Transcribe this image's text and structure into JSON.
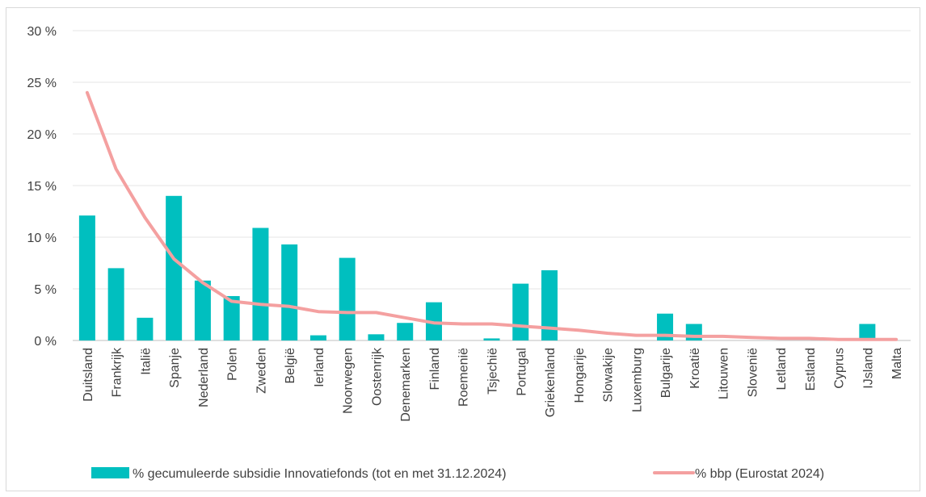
{
  "chart_data": {
    "type": "bar",
    "categories": [
      "Duitsland",
      "Frankrijk",
      "Italië",
      "Spanje",
      "Nederland",
      "Polen",
      "Zweden",
      "België",
      "Ierland",
      "Noorwegen",
      "Oostenrijk",
      "Denemarken",
      "Finland",
      "Roemenië",
      "Tsjechië",
      "Portugal",
      "Griekenland",
      "Hongarije",
      "Slowakije",
      "Luxemburg",
      "Bulgarije",
      "Kroatië",
      "Litouwen",
      "Slovenië",
      "Letland",
      "Estland",
      "Cyprus",
      "IJsland",
      "Malta"
    ],
    "series": [
      {
        "name": "% gecumuleerde subsidie Innovatiefonds (tot en met 31.12.2024)",
        "type": "bar",
        "color": "#00BFBF",
        "values": [
          12.1,
          7.0,
          2.2,
          14.0,
          5.8,
          4.3,
          10.9,
          9.3,
          0.5,
          8.0,
          0.6,
          1.7,
          3.7,
          0.0,
          0.2,
          5.5,
          6.8,
          0.0,
          0.0,
          0.0,
          2.6,
          1.6,
          0.0,
          0.0,
          0.0,
          0.0,
          0.0,
          1.6,
          0.0
        ]
      },
      {
        "name": "% bbp (Eurostat 2024)",
        "type": "line",
        "color": "#F4A0A0",
        "values": [
          24.0,
          16.6,
          11.9,
          7.9,
          5.6,
          3.8,
          3.5,
          3.3,
          2.8,
          2.7,
          2.7,
          2.2,
          1.7,
          1.6,
          1.6,
          1.4,
          1.2,
          1.0,
          0.7,
          0.5,
          0.5,
          0.4,
          0.4,
          0.3,
          0.2,
          0.2,
          0.1,
          0.1,
          0.1
        ]
      }
    ],
    "y_ticks": [
      "0 %",
      "5 %",
      "10 %",
      "15 %",
      "20 %",
      "25 %",
      "30 %"
    ],
    "ylim": [
      0,
      30
    ],
    "grid": true,
    "legend_position": "bottom"
  }
}
